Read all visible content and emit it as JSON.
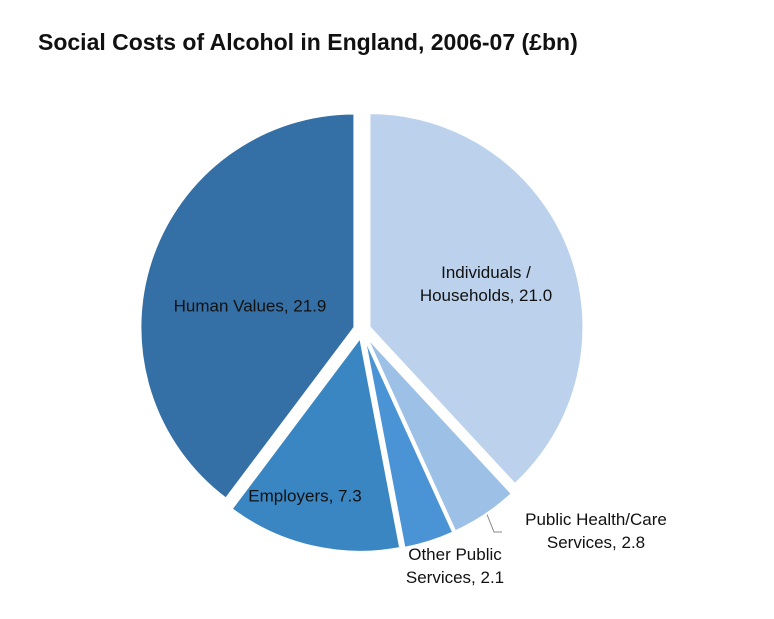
{
  "chart_data": {
    "type": "pie",
    "title": "Social Costs of Alcohol in England, 2006-07 (£bn)",
    "values": [
      21.0,
      2.8,
      2.1,
      7.3,
      21.9
    ],
    "value_labels": [
      [
        "Individuals /",
        "Households, 21.0"
      ],
      [
        "Public Health/Care",
        "Services, 2.8"
      ],
      [
        "Other Public",
        "Services, 2.1"
      ],
      [
        "Employers, 7.3"
      ],
      [
        "Human Values, 21.9"
      ]
    ],
    "colors": [
      "#bcd2ec",
      "#9dc0e6",
      "#4a94d6",
      "#3a86c2",
      "#3470a5"
    ]
  }
}
